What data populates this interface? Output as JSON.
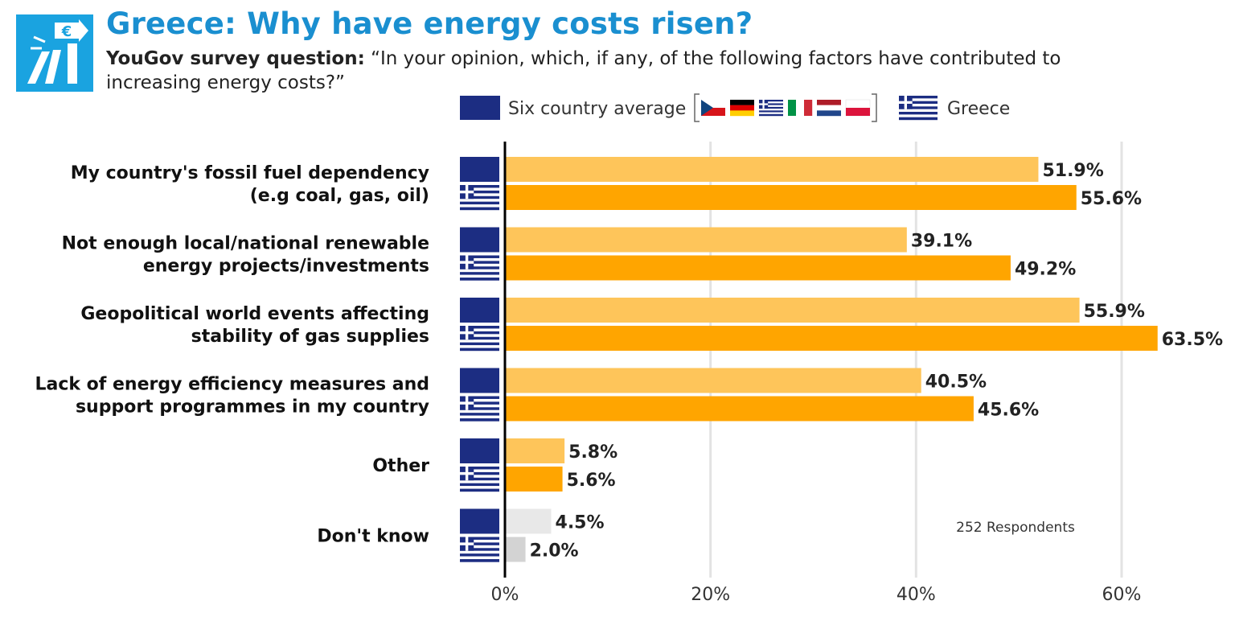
{
  "header": {
    "title": "Greece: Why have energy costs risen?",
    "question_lead": "YouGov survey question:",
    "question_text": " “In your opinion, which, if any, of the following factors have contributed to increasing energy costs?”"
  },
  "logo": {
    "icon": "euro-chart-icon",
    "color": "#1aa3e0"
  },
  "legend": {
    "average_label": "Six country average",
    "average_flags": [
      "cz-flag-icon",
      "de-flag-icon",
      "gr-flag-icon",
      "it-flag-icon",
      "nl-flag-icon",
      "pl-flag-icon"
    ],
    "greece_label": "Greece"
  },
  "note": "252 Respondents",
  "colors": {
    "average": "#fec55a",
    "greece": "#ffa500",
    "average_dont_know": "#e8e8e8",
    "greece_dont_know": "#d3d3d3",
    "navy": "#1c2d82",
    "title": "#1a8fd0"
  },
  "chart_data": {
    "type": "bar",
    "orientation": "horizontal",
    "title": "Greece: Why have energy costs risen?",
    "categories": [
      [
        "My country's fossil fuel dependency",
        "(e.g coal, gas, oil)"
      ],
      [
        "Not enough local/national renewable",
        "energy projects/investments"
      ],
      [
        "Geopolitical world events affecting",
        "stability of gas supplies"
      ],
      [
        "Lack of energy efficiency measures and",
        "support programmes in my country"
      ],
      [
        "Other"
      ],
      [
        "Don't know"
      ]
    ],
    "series": [
      {
        "name": "Six country average",
        "values": [
          51.9,
          39.1,
          55.9,
          40.5,
          5.8,
          4.5
        ],
        "labels": [
          "51.9%",
          "39.1%",
          "55.9%",
          "40.5%",
          "5.8%",
          "4.5%"
        ]
      },
      {
        "name": "Greece",
        "values": [
          55.6,
          49.2,
          63.5,
          45.6,
          5.6,
          2.0
        ],
        "labels": [
          "55.6%",
          "49.2%",
          "63.5%",
          "45.6%",
          "5.6%",
          "2.0%"
        ]
      }
    ],
    "xlim": [
      0,
      60
    ],
    "xticks": [
      0,
      20,
      40,
      60
    ],
    "xtick_labels": [
      "0%",
      "20%",
      "40%",
      "60%"
    ],
    "grid": true,
    "legend_position": "top"
  }
}
